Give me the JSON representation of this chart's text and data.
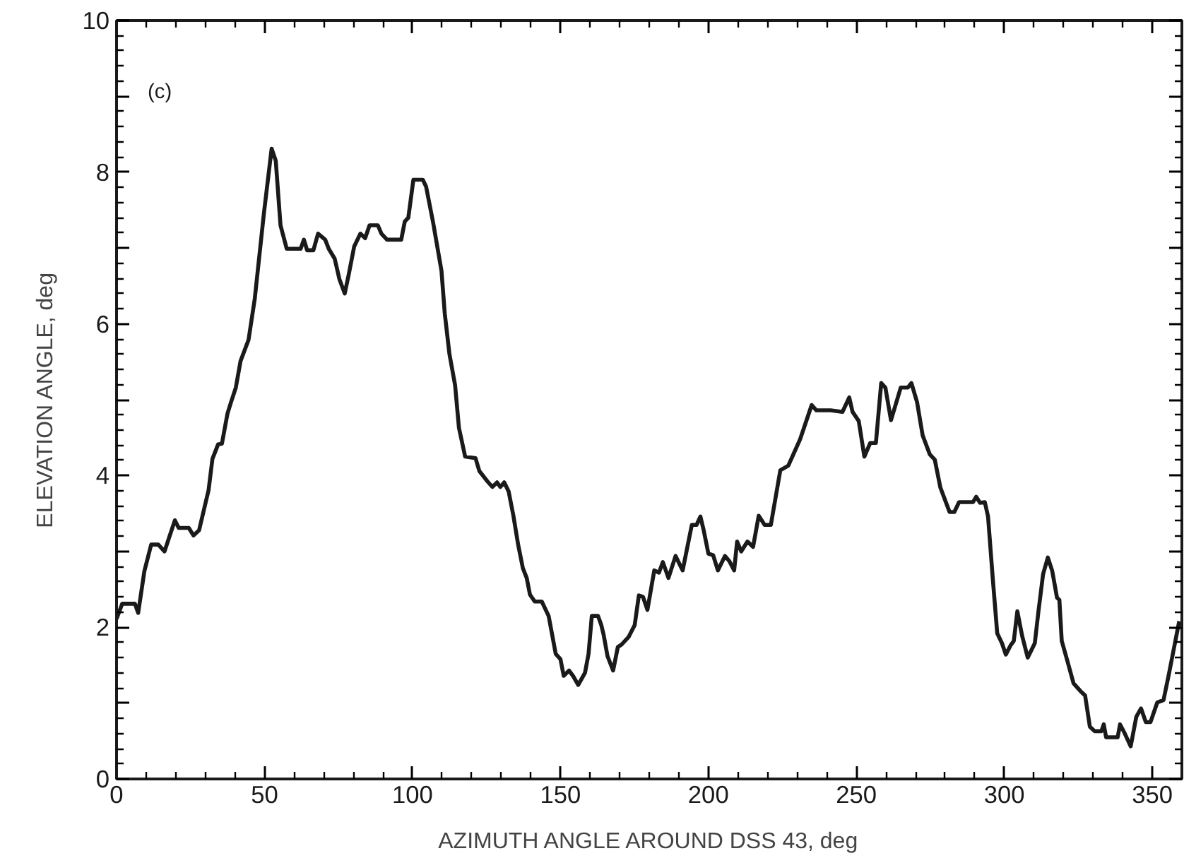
{
  "chart_data": {
    "type": "line",
    "xlabel": "AZIMUTH ANGLE AROUND DSS 43, deg",
    "ylabel": "ELEVATION ANGLE, deg",
    "annotations": [
      "(c)"
    ],
    "xlim": [
      0,
      360
    ],
    "ylim": [
      0,
      10
    ],
    "xticks": [
      0,
      50,
      100,
      150,
      200,
      250,
      300,
      350
    ],
    "yticks": [
      0,
      {
        "value": 1,
        "label": null
      },
      2,
      {
        "value": 3,
        "label": null
      },
      4,
      {
        "value": 5,
        "label": null
      },
      6,
      {
        "value": 7,
        "label": null
      },
      8,
      {
        "value": 9,
        "label": null
      },
      10
    ],
    "grid": false,
    "marker": "none",
    "line_style": "solid",
    "series": [
      {
        "color": "#1a1a1a",
        "x": [
          0,
          1.9,
          6.2,
          7.3,
          9.4,
          11.7,
          14.1,
          16.2,
          19.7,
          21,
          24.4,
          26,
          27.9,
          31.1,
          32.4,
          34.3,
          35.6,
          37.5,
          38.7,
          40.3,
          41.9,
          44.6,
          46.7,
          49.8,
          52.4,
          53.8,
          55.4,
          57.5,
          62.2,
          63.3,
          64.4,
          66.5,
          68.1,
          70.5,
          71.7,
          73.7,
          75.3,
          77.1,
          78.4,
          80.3,
          82.4,
          84,
          85.5,
          88.3,
          89.5,
          91.4,
          96.2,
          97.4,
          98.6,
          100.3,
          103.5,
          104.6,
          107,
          109.8,
          110.9,
          112.5,
          114.4,
          115.7,
          117.8,
          121.3,
          122.6,
          125.4,
          127,
          128.6,
          129.7,
          131,
          132.5,
          134.1,
          135.7,
          137.3,
          138.6,
          139.7,
          141.3,
          143.7,
          146,
          148.4,
          150,
          151.1,
          152.9,
          154.4,
          156,
          158.3,
          159.5,
          160.6,
          162.7,
          163.8,
          164.6,
          165.9,
          167.8,
          169.4,
          170.6,
          173,
          175.1,
          176.5,
          177.9,
          179.4,
          181.7,
          183.3,
          184.6,
          186.5,
          188.9,
          191.3,
          194.4,
          196,
          197.3,
          198.4,
          200,
          201.6,
          203.2,
          205.6,
          207.1,
          208.7,
          209.7,
          211.1,
          213.2,
          215.1,
          217,
          219,
          221.1,
          224.3,
          227,
          231,
          234.9,
          236.5,
          241.3,
          245.3,
          247.6,
          248.7,
          250.8,
          252.7,
          254.7,
          256.6,
          258.4,
          259.8,
          261.7,
          265,
          267.4,
          268.6,
          270.5,
          272.4,
          274.8,
          276.5,
          278.4,
          281.5,
          283.1,
          284.7,
          289.4,
          290.5,
          291.8,
          293.4,
          294.5,
          296.1,
          297.6,
          299.2,
          300.5,
          302.1,
          303.2,
          304.4,
          306,
          307.9,
          310.3,
          311.5,
          313.1,
          314.7,
          316.2,
          317.8,
          318.6,
          319.4,
          321,
          323.4,
          325.7,
          327.3,
          328.9,
          330.5,
          332.8,
          333.6,
          334.4,
          338.3,
          339.1,
          340.7,
          342.7,
          344.6,
          346.2,
          347.8,
          349.4,
          351.7,
          353.8,
          355.6,
          357.5,
          359.1
        ],
        "values": [
          2.11,
          2.31,
          2.31,
          2.19,
          2.74,
          3.09,
          3.09,
          3.0,
          3.41,
          3.31,
          3.31,
          3.21,
          3.28,
          3.81,
          4.22,
          4.41,
          4.42,
          4.82,
          4.97,
          5.16,
          5.51,
          5.79,
          6.33,
          7.46,
          8.31,
          8.15,
          7.3,
          6.99,
          6.99,
          7.11,
          6.97,
          6.97,
          7.19,
          7.11,
          6.99,
          6.86,
          6.59,
          6.4,
          6.64,
          7.02,
          7.19,
          7.13,
          7.3,
          7.3,
          7.19,
          7.11,
          7.11,
          7.35,
          7.4,
          7.9,
          7.9,
          7.81,
          7.33,
          6.7,
          6.14,
          5.6,
          5.19,
          4.63,
          4.25,
          4.23,
          4.06,
          3.92,
          3.85,
          3.91,
          3.85,
          3.91,
          3.79,
          3.47,
          3.09,
          2.78,
          2.65,
          2.43,
          2.34,
          2.34,
          2.15,
          1.65,
          1.58,
          1.36,
          1.43,
          1.35,
          1.24,
          1.4,
          1.65,
          2.15,
          2.15,
          2.03,
          1.9,
          1.62,
          1.43,
          1.74,
          1.77,
          1.87,
          2.03,
          2.42,
          2.4,
          2.23,
          2.75,
          2.72,
          2.86,
          2.65,
          2.94,
          2.75,
          3.35,
          3.35,
          3.46,
          3.28,
          2.97,
          2.95,
          2.75,
          2.94,
          2.87,
          2.75,
          3.13,
          3.0,
          3.13,
          3.06,
          3.47,
          3.35,
          3.35,
          4.07,
          4.13,
          4.48,
          4.93,
          4.86,
          4.86,
          4.84,
          5.03,
          4.84,
          4.72,
          4.25,
          4.43,
          4.43,
          5.22,
          5.16,
          4.73,
          5.16,
          5.16,
          5.22,
          4.97,
          4.53,
          4.28,
          4.21,
          3.84,
          3.52,
          3.52,
          3.65,
          3.65,
          3.72,
          3.64,
          3.65,
          3.46,
          2.64,
          1.92,
          1.79,
          1.64,
          1.76,
          1.82,
          2.21,
          1.89,
          1.6,
          1.79,
          2.2,
          2.7,
          2.92,
          2.74,
          2.39,
          2.36,
          1.82,
          1.6,
          1.26,
          1.16,
          1.1,
          0.69,
          0.63,
          0.63,
          0.72,
          0.55,
          0.55,
          0.72,
          0.6,
          0.43,
          0.82,
          0.93,
          0.75,
          0.75,
          1.01,
          1.04,
          1.38,
          1.76,
          2.08
        ]
      }
    ]
  }
}
